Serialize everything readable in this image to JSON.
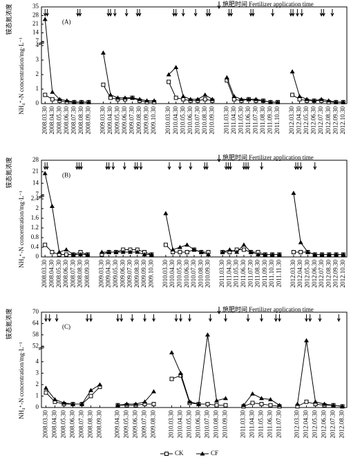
{
  "chart_data": [
    {
      "type": "line",
      "label": "(A)",
      "y_label": "NH₄⁺-N concentration/mg·L⁻¹",
      "y_label_cn": "铵态氮浓度",
      "annotation": "施肥时间 Fertilizer application time",
      "categories": [
        "2008.03.30",
        "2008.04.30",
        "2008.05.30",
        "2008.06.30",
        "2008.07.30",
        "2008.08.30",
        "2008.09.30",
        null,
        "2009.03.30",
        "2009.04.30",
        "2009.05.30",
        "2009.06.30",
        "2009.07.30",
        "2009.08.30",
        "2009.09.30",
        "2009.10.30",
        null,
        "2010.03.30",
        "2010.04.30",
        "2010.05.30",
        "2010.06.30",
        "2010.07.30",
        "2010.08.30",
        "2010.09.30",
        null,
        "2011.03.30",
        "2011.04.30",
        "2011.05.30",
        "2011.06.30",
        "2011.07.30",
        "2011.08.30",
        "2011.09.30",
        "2011.10.30",
        null,
        "2012.03.30",
        "2012.04.30",
        "2012.05.30",
        "2012.06.30",
        "2012.07.30",
        "2012.08.30",
        "2012.09.30",
        "2012.10.30"
      ],
      "ylim": [
        0,
        35
      ],
      "ybreak": [
        4,
        7
      ],
      "yticks": [
        0,
        1,
        2,
        3,
        4,
        7,
        14,
        21,
        28,
        35
      ],
      "fertilizer": [
        0,
        0.3,
        4.5,
        4.8,
        8.7,
        9,
        9.6,
        11.2,
        12.7,
        13,
        17.7,
        18,
        19,
        20.7,
        22.3,
        22.6,
        25.3,
        25.6,
        28.3,
        28.6,
        31.3,
        33.8,
        34.1,
        34.7,
        35.3,
        38,
        38.3,
        39.5
      ],
      "series": [
        {
          "name": "CK",
          "color": "#000",
          "marker": "square",
          "values": [
            0.6,
            0.3,
            0.2,
            0.1,
            0.1,
            0.1,
            0.1,
            null,
            1.3,
            0.4,
            0.3,
            0.3,
            0.4,
            0.2,
            0.1,
            0.1,
            null,
            1.5,
            0.4,
            0.3,
            0.2,
            0.2,
            0.3,
            0.2,
            null,
            1.6,
            0.3,
            0.2,
            0.3,
            0.2,
            0.2,
            0.1,
            0.1,
            null,
            0.6,
            0.3,
            0.2,
            0.2,
            0.2,
            0.1,
            0.1,
            0.1
          ]
        },
        {
          "name": "CF",
          "color": "#000",
          "marker": "triangle",
          "values": [
            25,
            0.8,
            0.3,
            0.2,
            0.1,
            0.1,
            0.1,
            null,
            3.5,
            0.6,
            0.4,
            0.4,
            0.4,
            0.3,
            0.2,
            0.2,
            null,
            2.0,
            2.5,
            0.5,
            0.3,
            0.3,
            0.6,
            0.3,
            null,
            1.8,
            0.5,
            0.3,
            0.3,
            0.3,
            0.2,
            0.1,
            0.1,
            null,
            2.2,
            0.5,
            0.3,
            0.2,
            0.3,
            0.2,
            0.1,
            0.1
          ]
        }
      ]
    },
    {
      "type": "line",
      "label": "(B)",
      "y_label": "NH₄⁺-N concentration/mg·L⁻¹",
      "y_label_cn": "铵态氮浓度",
      "annotation": "施肥时间 Fertilizer application time",
      "categories": [
        "2008.03.30",
        "2008.04.30",
        "2008.05.30",
        "2008.06.30",
        "2008.07.30",
        "2008.08.30",
        "2008.09.30",
        null,
        "2009.03.30",
        "2009.04.30",
        "2009.05.30",
        "2009.06.30",
        "2009.07.30",
        "2009.08.30",
        "2009.09.30",
        "2009.10.30",
        null,
        "2010.03.30",
        "2010.04.30",
        "2010.05.30",
        "2010.06.30",
        "2010.07.30",
        "2010.08.30",
        "2010.09.30",
        null,
        "2011.03.30",
        "2011.04.30",
        "2011.05.30",
        "2011.06.30",
        "2011.07.30",
        "2011.08.30",
        "2011.09.30",
        "2011.10.30",
        "2011.11.30",
        null,
        "2012.03.30",
        "2012.04.30",
        "2012.05.30",
        "2012.06.30",
        "2012.07.30",
        "2012.08.30",
        "2012.09.30",
        "2012.10.30"
      ],
      "ylim": [
        0,
        28
      ],
      "ybreak": [
        2.4,
        7
      ],
      "yticks": [
        0,
        0.4,
        0.8,
        1.2,
        1.6,
        2.0,
        2.4,
        7,
        14,
        21,
        28
      ],
      "fertilizer": [
        0,
        0.3,
        4.5,
        4.8,
        5.1,
        8.7,
        9,
        9.6,
        11.2,
        12.7,
        13,
        13.5,
        17.5,
        19,
        20.5,
        22.5,
        22.8,
        25.5,
        25.8,
        26.1,
        28,
        28.3,
        28.6,
        30.5,
        35.3,
        35.6,
        36,
        38
      ],
      "series": [
        {
          "name": "CK",
          "color": "#000",
          "marker": "square",
          "values": [
            0.5,
            0.2,
            0.1,
            0.1,
            0.1,
            0.2,
            0.1,
            null,
            0.1,
            0.2,
            0.2,
            0.3,
            0.3,
            0.3,
            0.2,
            0.1,
            null,
            0.5,
            0.2,
            0.2,
            0.2,
            0.3,
            0.2,
            0.2,
            null,
            0.2,
            0.2,
            0.3,
            0.3,
            0.2,
            0.2,
            0.1,
            0.1,
            0.1,
            null,
            0.2,
            0.2,
            0.2,
            0.1,
            0.1,
            0.1,
            0.1,
            0.1
          ]
        },
        {
          "name": "CF",
          "color": "#000",
          "marker": "triangle",
          "values": [
            20,
            2.1,
            0.2,
            0.3,
            0.1,
            0.1,
            0.1,
            null,
            0.2,
            0.2,
            0.2,
            0.2,
            0.2,
            0.2,
            0.1,
            0.1,
            null,
            1.8,
            0.3,
            0.4,
            0.5,
            0.3,
            0.2,
            0.1,
            null,
            0.2,
            0.3,
            0.2,
            0.5,
            0.2,
            0.1,
            0.1,
            0.1,
            0.1,
            null,
            8,
            0.6,
            0.2,
            0.1,
            0.1,
            0.1,
            0.1,
            0.1
          ]
        }
      ]
    },
    {
      "type": "line",
      "label": "(C)",
      "y_label": "NH₄⁺-N concentration/mg·L⁻¹",
      "y_label_cn": "铵态氮浓度",
      "annotation": "施肥时间 Fertilizer application time",
      "categories": [
        "2008.03.30",
        "2008.04.30",
        "2008.05.30",
        "2008.06.30",
        "2008.07.30",
        "2008.08.30",
        "2008.09.30",
        null,
        "2009.04.30",
        "2009.05.30",
        "2009.06.30",
        "2009.07.30",
        "2009.08.30",
        null,
        "2010.03.30",
        "2010.04.30",
        "2010.05.30",
        "2010.06.30",
        "2010.07.30",
        "2010.08.30",
        "2010.09.30",
        null,
        "2011.03.30",
        "2011.04.30",
        "2011.05.30",
        "2011.06.30",
        "2011.07.30",
        null,
        "2012.03.30",
        "2012.04.30",
        "2012.05.30",
        "2012.06.30",
        "2012.07.30",
        "2012.08.30"
      ],
      "ylim": [
        0,
        70
      ],
      "ybreak": [
        5,
        52
      ],
      "yticks": [
        0,
        1,
        2,
        3,
        4,
        52,
        58,
        64,
        70
      ],
      "legend": "bottom",
      "fertilizer": [
        0,
        0.4,
        1.2,
        4.6,
        5,
        8,
        8.4,
        9.6,
        11,
        12,
        14.5,
        15,
        16,
        18.3,
        20,
        22.5,
        24,
        25.6,
        26,
        29,
        29.4,
        30.5,
        32.6
      ],
      "series": [
        {
          "name": "CK",
          "color": "#000",
          "marker": "square",
          "values": [
            1.3,
            0.5,
            0.3,
            0.3,
            0.3,
            1.0,
            1.8,
            null,
            0.2,
            0.2,
            0.2,
            0.3,
            0.3,
            null,
            2.5,
            2.8,
            0.4,
            0.3,
            0.3,
            0.2,
            0.2,
            null,
            0.1,
            0.4,
            0.3,
            0.2,
            0.1,
            null,
            0.1,
            0.5,
            0.3,
            0.2,
            0.2,
            0.1
          ]
        },
        {
          "name": "CF",
          "color": "#000",
          "marker": "triangle",
          "values": [
            1.7,
            0.7,
            0.4,
            0.3,
            0.3,
            1.5,
            2.0,
            null,
            0.2,
            0.3,
            0.3,
            0.5,
            1.4,
            null,
            4.8,
            3.0,
            0.5,
            0.3,
            58,
            0.6,
            0.8,
            null,
            0.2,
            1.2,
            0.8,
            0.7,
            0.2,
            null,
            0.3,
            55,
            0.5,
            0.3,
            0.2,
            0.1
          ]
        }
      ]
    }
  ]
}
